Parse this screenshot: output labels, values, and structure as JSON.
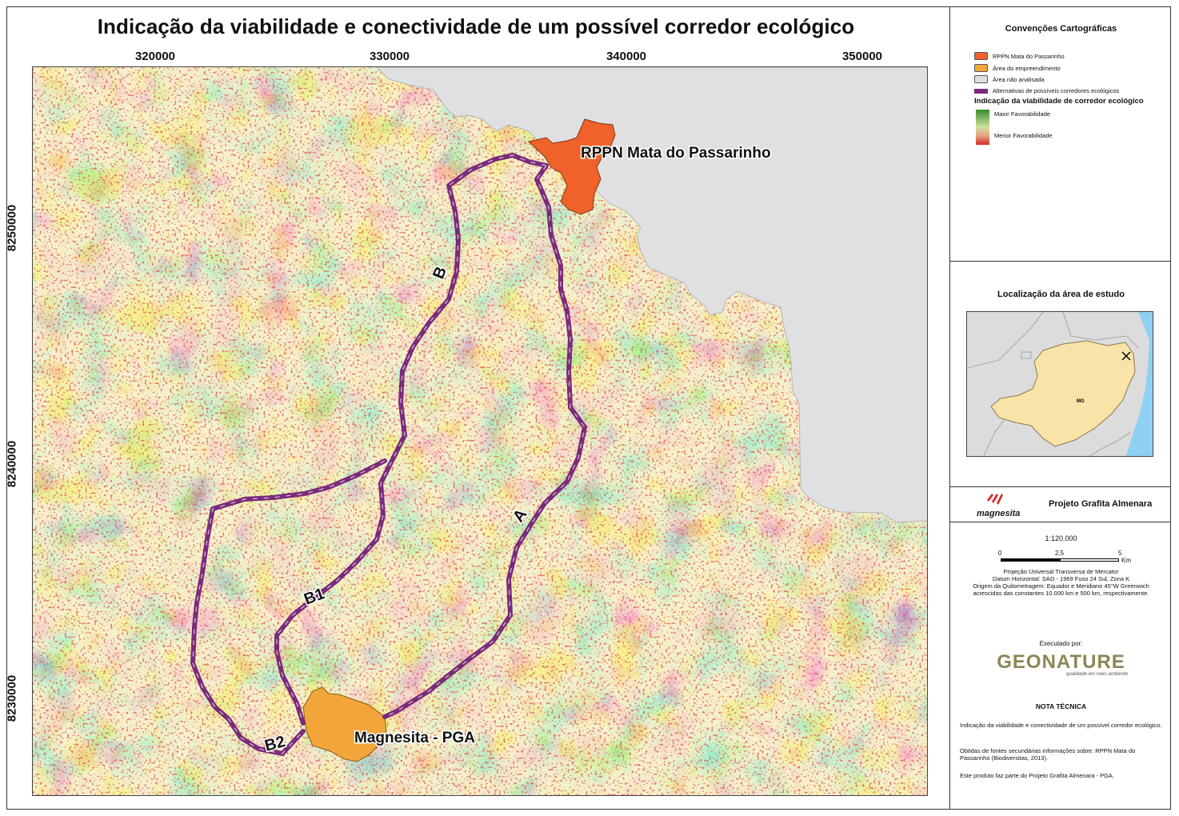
{
  "title": "Indicação da viabilidade e conectividade de um possível corredor ecológico",
  "x_ticks": [
    "320000",
    "330000",
    "340000",
    "350000"
  ],
  "y_ticks": [
    "8250000",
    "8240000",
    "8230000"
  ],
  "map": {
    "labels": {
      "rppn": "RPPN Mata do Passarinho",
      "pga": "Magnesita - PGA",
      "route_a": "A",
      "route_b": "B",
      "route_b1": "B1",
      "route_b2": "B2"
    },
    "colors": {
      "favorable": "#3a8d2b",
      "unfavorable": "#d32a20",
      "rppn": "#f0622a",
      "project_area": "#f2a63a",
      "not_analyzed": "#e0e0e2",
      "corridor": "#7a2a7a"
    }
  },
  "legend": {
    "title": "Convenções Cartográficas",
    "items": [
      {
        "label": "RPPN Mata do Passarinho",
        "color": "#f0622a"
      },
      {
        "label": "Área do empreendimento",
        "color": "#f2a63a"
      },
      {
        "label": "Área não analisada",
        "color": "#e0e0e2"
      }
    ],
    "corridor_label": "Alternativas de possíveis corredores ecológicos",
    "gradient_title": "Indicação da viabilidade de corredor ecológico",
    "gradient_high": "Maior Favorabilidade",
    "gradient_low": "Menor Favorabilidade"
  },
  "location": {
    "title": "Localização da área de estudo",
    "state_label": "MG"
  },
  "brand": {
    "logo": "magnesita",
    "project": "Projeto Grafita Almenara"
  },
  "scale": {
    "ratio": "1:120.000",
    "ticks": [
      "0",
      "2,5",
      "5"
    ],
    "unit": "Km",
    "projection_lines": [
      "Projeção Universal Transversa de Mercator",
      "Datum Horizontal: SAD - 1969 Fuso 24 Sul, Zona K",
      "Origem da Quilometragem: Equador e Meridiano 45°W Greenwich",
      "acrescidas das constantes 10.000 km e 500 km, respectivamente."
    ]
  },
  "credits": {
    "executed_by": "Executado por:",
    "company": "GEONATURE",
    "tagline": "qualidade em meio ambiente"
  },
  "notes": {
    "title": "NOTA TÉCNICA",
    "paragraphs": [
      "Indicação da viabilidade e conectividade de um possível corredor ecológico.",
      "Obtidas de fontes secundárias informações sobre: RPPN Mata do Passarinho (Biodiversitas, 2013).",
      "Este produto faz parte do Projeto Grafita Almenara - PGA."
    ]
  }
}
